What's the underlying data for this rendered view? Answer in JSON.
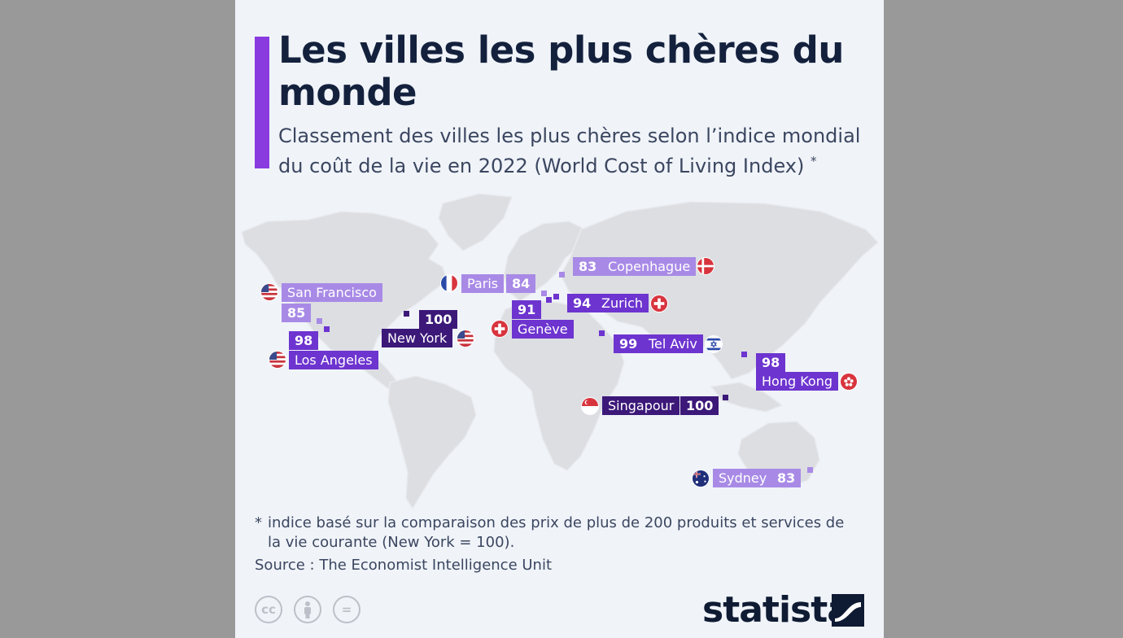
{
  "header": {
    "title": "Les villes les plus chères du monde",
    "subtitle": "Classement des villes les plus chères selon l’indice mondial du coût de la vie en 2022 (World Cost of Living Index)",
    "subtitle_marker": "*"
  },
  "colors": {
    "accent": "#8a3be0",
    "rank_top": "#3c1879",
    "rank_mid": "#6d34cf",
    "rank_low": "#a88ae6",
    "land": "#dcdee2"
  },
  "cities": {
    "san_francisco": {
      "name": "San Francisco",
      "value": "85",
      "flag": "us-flag-icon"
    },
    "los_angeles": {
      "name": "Los Angeles",
      "value": "98",
      "flag": "us-flag-icon"
    },
    "new_york": {
      "name": "New York",
      "value": "100",
      "flag": "us-flag-icon"
    },
    "paris": {
      "name": "Paris",
      "value": "84",
      "flag": "france-flag-icon"
    },
    "geneve": {
      "name": "Genève",
      "value": "91",
      "flag": "switzerland-flag-icon"
    },
    "zurich": {
      "name": "Zurich",
      "value": "94",
      "flag": "switzerland-flag-icon"
    },
    "copenhague": {
      "name": "Copenhague",
      "value": "83",
      "flag": "denmark-flag-icon"
    },
    "tel_aviv": {
      "name": "Tel Aviv",
      "value": "99",
      "flag": "israel-flag-icon"
    },
    "hong_kong": {
      "name": "Hong Kong",
      "value": "98",
      "flag": "hong-kong-flag-icon"
    },
    "singapour": {
      "name": "Singapour",
      "value": "100",
      "flag": "singapore-flag-icon"
    },
    "sydney": {
      "name": "Sydney",
      "value": "83",
      "flag": "australia-flag-icon"
    }
  },
  "footer": {
    "footnote_marker": "*",
    "footnote_line1": "indice basé sur la comparaison des prix de plus de 200 produits et services de",
    "footnote_line2": "la vie courante (New York = 100).",
    "source": "Source : The Economist Intelligence Unit",
    "license_icons": [
      "cc-icon",
      "attribution-icon",
      "no-derivatives-icon"
    ],
    "license_cc": "cc",
    "license_nd": "=",
    "brand": "statista"
  }
}
